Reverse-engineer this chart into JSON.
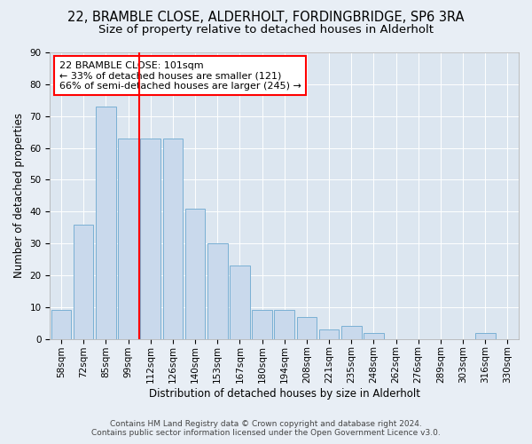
{
  "title": "22, BRAMBLE CLOSE, ALDERHOLT, FORDINGBRIDGE, SP6 3RA",
  "subtitle": "Size of property relative to detached houses in Alderholt",
  "xlabel": "Distribution of detached houses by size in Alderholt",
  "ylabel": "Number of detached properties",
  "categories": [
    "58sqm",
    "72sqm",
    "85sqm",
    "99sqm",
    "112sqm",
    "126sqm",
    "140sqm",
    "153sqm",
    "167sqm",
    "180sqm",
    "194sqm",
    "208sqm",
    "221sqm",
    "235sqm",
    "248sqm",
    "262sqm",
    "276sqm",
    "289sqm",
    "303sqm",
    "316sqm",
    "330sqm"
  ],
  "values": [
    9,
    36,
    73,
    63,
    63,
    63,
    41,
    30,
    23,
    9,
    9,
    7,
    3,
    4,
    2,
    0,
    0,
    0,
    0,
    2,
    0
  ],
  "bar_color": "#c9d9ec",
  "bar_edge_color": "#7ab0d4",
  "vline_x": 3.5,
  "vline_color": "red",
  "annotation_text": "22 BRAMBLE CLOSE: 101sqm\n← 33% of detached houses are smaller (121)\n66% of semi-detached houses are larger (245) →",
  "annotation_box_color": "white",
  "annotation_box_edge": "red",
  "ylim": [
    0,
    90
  ],
  "yticks": [
    0,
    10,
    20,
    30,
    40,
    50,
    60,
    70,
    80,
    90
  ],
  "bg_color": "#e8eef5",
  "plot_bg_color": "#dce6f0",
  "footer": "Contains HM Land Registry data © Crown copyright and database right 2024.\nContains public sector information licensed under the Open Government Licence v3.0.",
  "title_fontsize": 10.5,
  "subtitle_fontsize": 9.5,
  "axis_label_fontsize": 8.5,
  "tick_fontsize": 7.5,
  "annotation_fontsize": 8,
  "footer_fontsize": 6.5
}
